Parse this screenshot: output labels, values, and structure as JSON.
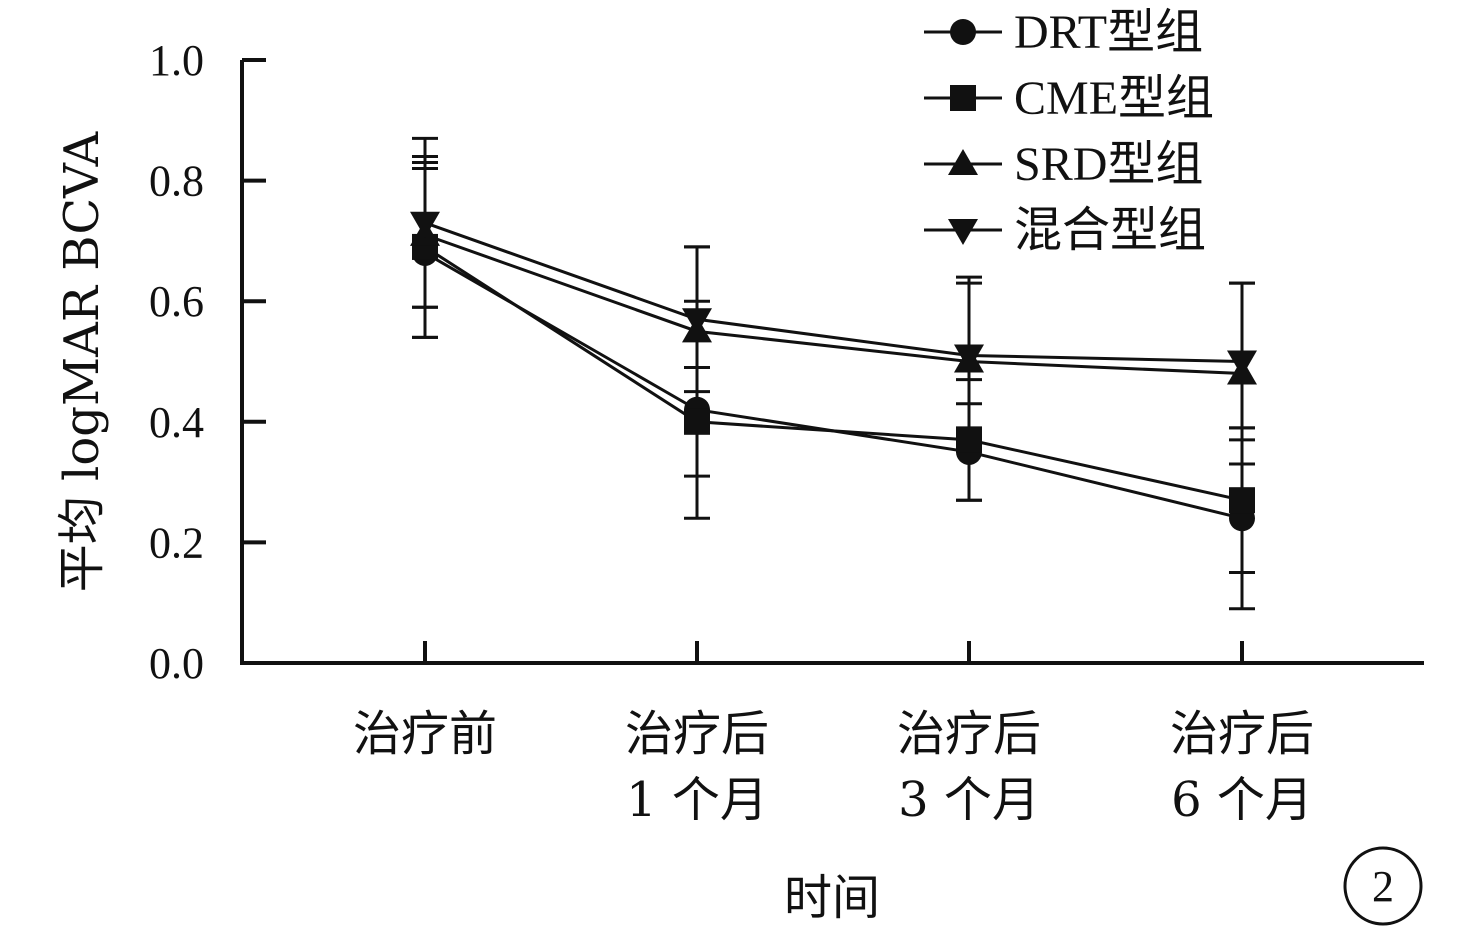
{
  "chart_data": {
    "type": "line",
    "title": "",
    "xlabel": "时间",
    "ylabel": "平均 logMAR BCVA",
    "ylim": [
      0,
      1.0
    ],
    "yticks": [
      "0.0",
      "0.2",
      "0.4",
      "0.6",
      "0.8",
      "1.0"
    ],
    "categories": [
      [
        "治疗前"
      ],
      [
        "治疗后",
        "1 个月"
      ],
      [
        "治疗后",
        "3 个月"
      ],
      [
        "治疗后",
        "6 个月"
      ]
    ],
    "legend_position": "top-right",
    "grid": false,
    "series": [
      {
        "name": "DRT型组",
        "marker": "circle",
        "values": [
          0.68,
          0.42,
          0.35,
          0.24
        ],
        "error": [
          0.14,
          0.18,
          0.08,
          0.15
        ]
      },
      {
        "name": "CME型组",
        "marker": "square",
        "values": [
          0.69,
          0.4,
          0.37,
          0.27
        ],
        "error": [
          0.15,
          0.09,
          0.1,
          0.12
        ]
      },
      {
        "name": "SRD型组",
        "marker": "triangle-up",
        "values": [
          0.71,
          0.55,
          0.5,
          0.48
        ],
        "error": [
          0.12,
          0.14,
          0.14,
          0.15
        ]
      },
      {
        "name": "混合型组",
        "marker": "triangle-down",
        "values": [
          0.73,
          0.57,
          0.51,
          0.5
        ],
        "error": [
          0.14,
          0.12,
          0.12,
          0.13
        ]
      }
    ],
    "panel_label": "2"
  }
}
